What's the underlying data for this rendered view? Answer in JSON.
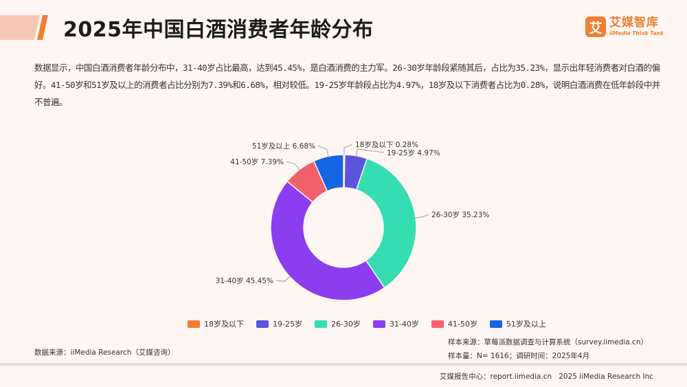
{
  "header": {
    "title": "2025年中国白酒消费者年龄分布",
    "logo_mark": "艾",
    "logo_cn": "艾媒智库",
    "logo_en": "iiMedia Think Tank"
  },
  "description": "数据显示，中国白酒消费者年龄分布中，31-40岁占比最高，达到45.45%，是白酒消费的主力军。26-30岁年龄段紧随其后，占比为35.23%，显示出年轻消费者对白酒的偏好。41-50岁和51岁及以上的消费者占比分别为7.39%和6.68%，相对较低。19-25岁年龄段占比为4.97%，18岁及以下消费者占比为0.28%，说明白酒消费在低年龄段中并不普遍。",
  "chart_data": {
    "type": "pie",
    "donut": true,
    "categories": [
      "18岁及以下",
      "19-25岁",
      "26-30岁",
      "31-40岁",
      "41-50岁",
      "51岁及以上"
    ],
    "values": [
      0.28,
      4.97,
      35.23,
      45.45,
      7.39,
      6.68
    ],
    "data_labels": [
      "18岁及以下 0.28%",
      "19-25岁 4.97%",
      "26-30岁 35.23%",
      "31-40岁 45.45%",
      "41-50岁 7.39%",
      "51岁及以上 6.68%"
    ],
    "colors": [
      "#ef7f32",
      "#5b55dd",
      "#36ddb2",
      "#8c3df0",
      "#f0616b",
      "#1665e2"
    ],
    "legend_position": "bottom"
  },
  "source": {
    "data_source": "数据来源：iiMedia Research（艾媒咨询）",
    "sample_source": "样本来源：草莓派数据调查与计算系统（survey.iimedia.cn）",
    "sample_size": "样本量：N= 1616；调研时间：2025年4月"
  },
  "footer": {
    "text": "艾媒报告中心：report.iimedia.cn   2025 iiMedia Research Inc"
  }
}
